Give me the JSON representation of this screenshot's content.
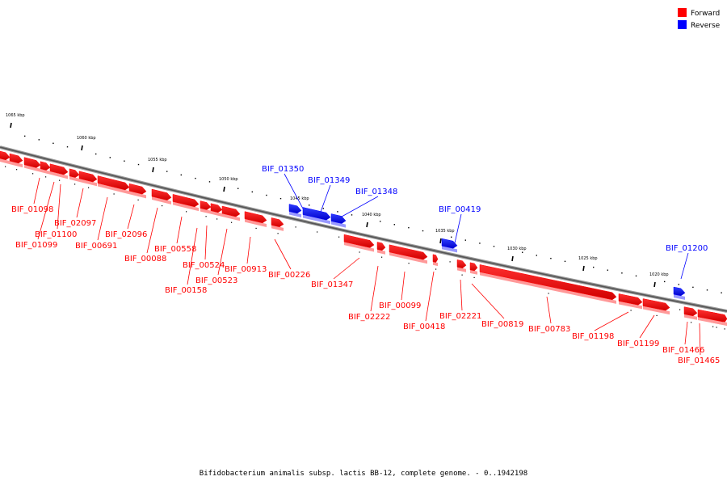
{
  "legend": {
    "forward": {
      "label": "Forward",
      "color": "#ff0000"
    },
    "reverse": {
      "label": "Reverse",
      "color": "#0000ff"
    }
  },
  "caption": "Bifidobacterium animalis subsp. lactis BB-12, complete genome. - 0..1942198",
  "scale_unit": "kbp",
  "ticks_kbp": [
    1065,
    1060,
    1055,
    1050,
    1045,
    1040,
    1035,
    1030,
    1025,
    1020
  ],
  "genes": [
    {
      "name": "BIF_01098",
      "strand": "forward"
    },
    {
      "name": "BIF_01100",
      "strand": "forward"
    },
    {
      "name": "BIF_01099",
      "strand": "forward"
    },
    {
      "name": "BIF_02097",
      "strand": "forward"
    },
    {
      "name": "BIF_00691",
      "strand": "forward"
    },
    {
      "name": "BIF_02096",
      "strand": "forward"
    },
    {
      "name": "BIF_00088",
      "strand": "forward"
    },
    {
      "name": "BIF_00558",
      "strand": "forward"
    },
    {
      "name": "BIF_00524",
      "strand": "forward"
    },
    {
      "name": "BIF_00158",
      "strand": "forward"
    },
    {
      "name": "BIF_00523",
      "strand": "forward"
    },
    {
      "name": "BIF_00913",
      "strand": "forward"
    },
    {
      "name": "BIF_00226",
      "strand": "forward"
    },
    {
      "name": "BIF_01350",
      "strand": "reverse"
    },
    {
      "name": "BIF_01349",
      "strand": "reverse"
    },
    {
      "name": "BIF_01348",
      "strand": "reverse"
    },
    {
      "name": "BIF_01347",
      "strand": "forward"
    },
    {
      "name": "BIF_02222",
      "strand": "forward"
    },
    {
      "name": "BIF_00099",
      "strand": "forward"
    },
    {
      "name": "BIF_00418",
      "strand": "forward"
    },
    {
      "name": "BIF_00419",
      "strand": "reverse"
    },
    {
      "name": "BIF_02221",
      "strand": "forward"
    },
    {
      "name": "BIF_00819",
      "strand": "forward"
    },
    {
      "name": "BIF_00783",
      "strand": "forward"
    },
    {
      "name": "BIF_01198",
      "strand": "forward"
    },
    {
      "name": "BIF_01199",
      "strand": "forward"
    },
    {
      "name": "BIF_01200",
      "strand": "reverse"
    },
    {
      "name": "BIF_01466",
      "strand": "forward"
    },
    {
      "name": "BIF_01465",
      "strand": "forward"
    }
  ]
}
